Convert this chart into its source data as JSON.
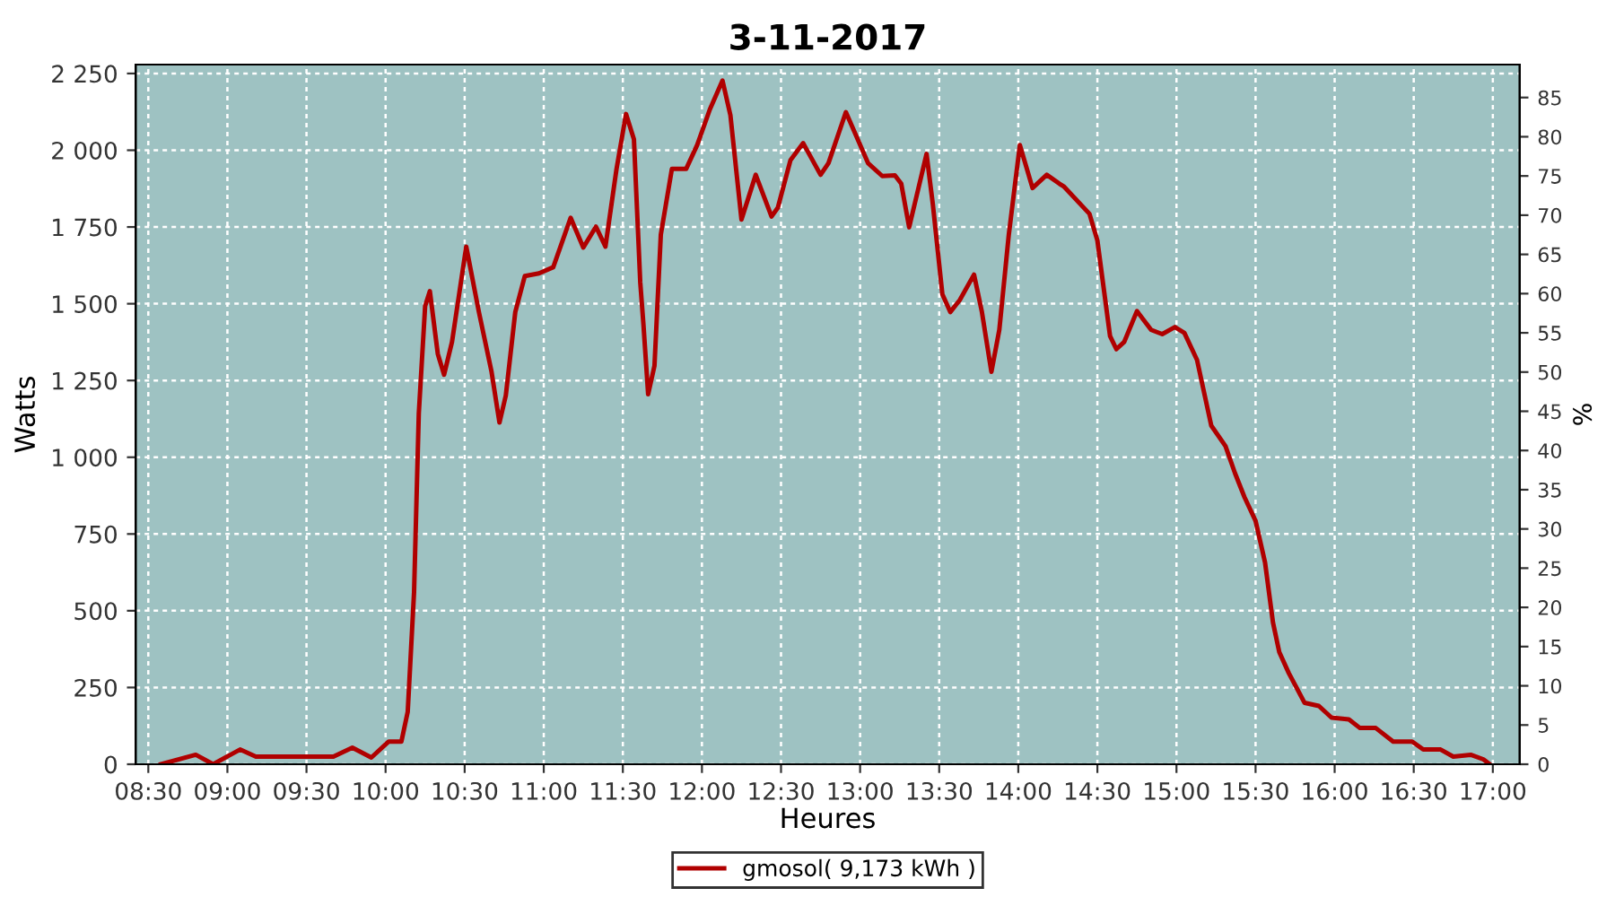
{
  "chart_data": {
    "type": "line",
    "title": "3-11-2017",
    "xlabel": "Heures",
    "ylabel": "Watts",
    "y2label": "%",
    "x": [
      8.58,
      8.8,
      8.91,
      9.08,
      9.18,
      9.67,
      9.79,
      9.91,
      10.02,
      10.1,
      10.14,
      10.18,
      10.21,
      10.25,
      10.28,
      10.33,
      10.37,
      10.42,
      10.51,
      10.59,
      10.67,
      10.72,
      10.76,
      10.82,
      10.88,
      10.97,
      11.06,
      11.17,
      11.25,
      11.33,
      11.39,
      11.46,
      11.52,
      11.57,
      11.61,
      11.63,
      11.66,
      11.7,
      11.74,
      11.81,
      11.9,
      11.97,
      12.05,
      12.13,
      12.18,
      12.25,
      12.34,
      12.44,
      12.48,
      12.56,
      12.64,
      12.75,
      12.8,
      12.91,
      13.05,
      13.14,
      13.22,
      13.26,
      13.31,
      13.42,
      13.46,
      13.52,
      13.57,
      13.63,
      13.72,
      13.77,
      13.83,
      13.88,
      13.94,
      14.01,
      14.09,
      14.18,
      14.26,
      14.29,
      14.45,
      14.5,
      14.58,
      14.62,
      14.67,
      14.75,
      14.84,
      14.91,
      14.99,
      15.05,
      15.13,
      15.22,
      15.31,
      15.37,
      15.43,
      15.5,
      15.56,
      15.61,
      15.65,
      15.71,
      15.81,
      15.9,
      15.98,
      16.09,
      16.16,
      16.26,
      16.37,
      16.49,
      16.56,
      16.67,
      16.75,
      16.86,
      16.94,
      16.98
    ],
    "series": [
      {
        "name": "gmosol( 9,173 kWh )",
        "color": "#b00000",
        "values": [
          0,
          31,
          0,
          48,
          25,
          25,
          54,
          22,
          74,
          74,
          171,
          560,
          1142,
          1492,
          1541,
          1337,
          1269,
          1376,
          1686,
          1473,
          1278,
          1113,
          1201,
          1473,
          1590,
          1599,
          1619,
          1780,
          1683,
          1751,
          1686,
          1939,
          2118,
          2036,
          1570,
          1434,
          1205,
          1298,
          1725,
          1939,
          1939,
          2017,
          2133,
          2227,
          2114,
          1774,
          1920,
          1784,
          1813,
          1968,
          2023,
          1920,
          1958,
          2124,
          1958,
          1916,
          1918,
          1891,
          1749,
          1988,
          1823,
          1531,
          1473,
          1512,
          1595,
          1473,
          1278,
          1415,
          1725,
          2017,
          1877,
          1920,
          1891,
          1881,
          1793,
          1706,
          1395,
          1352,
          1376,
          1476,
          1415,
          1401,
          1424,
          1405,
          1317,
          1103,
          1036,
          948,
          870,
          793,
          657,
          462,
          365,
          297,
          200,
          190,
          152,
          146,
          118,
          118,
          74,
          74,
          48,
          48,
          25,
          31,
          16,
          0
        ]
      }
    ],
    "xlim": [
      8.42,
      17.17
    ],
    "ylim": [
      0,
      2279
    ],
    "y2lim": [
      0,
      89.2
    ],
    "xticks": [
      {
        "value": 8.5,
        "label": "08:30"
      },
      {
        "value": 9,
        "label": "09:00"
      },
      {
        "value": 9.5,
        "label": "09:30"
      },
      {
        "value": 10,
        "label": "10:00"
      },
      {
        "value": 10.5,
        "label": "10:30"
      },
      {
        "value": 11,
        "label": "11:00"
      },
      {
        "value": 11.5,
        "label": "11:30"
      },
      {
        "value": 12,
        "label": "12:00"
      },
      {
        "value": 12.5,
        "label": "12:30"
      },
      {
        "value": 13,
        "label": "13:00"
      },
      {
        "value": 13.5,
        "label": "13:30"
      },
      {
        "value": 14,
        "label": "14:00"
      },
      {
        "value": 14.5,
        "label": "14:30"
      },
      {
        "value": 15,
        "label": "15:00"
      },
      {
        "value": 15.5,
        "label": "15:30"
      },
      {
        "value": 16,
        "label": "16:00"
      },
      {
        "value": 16.5,
        "label": "16:30"
      },
      {
        "value": 17,
        "label": "17:00"
      }
    ],
    "yticks": [
      0,
      250,
      500,
      750,
      {
        "value": 1000,
        "label": "1 000"
      },
      {
        "value": 1250,
        "label": "1 250"
      },
      {
        "value": 1500,
        "label": "1 500"
      },
      {
        "value": 1750,
        "label": "1 750"
      },
      {
        "value": 2000,
        "label": "2 000"
      },
      {
        "value": 2250,
        "label": "2 250"
      }
    ],
    "y2ticks": [
      0,
      5,
      10,
      15,
      20,
      25,
      30,
      35,
      40,
      45,
      50,
      55,
      60,
      65,
      70,
      75,
      80,
      85
    ],
    "grid": true,
    "legend": "bottom",
    "marker": "none",
    "line_style": "solid"
  }
}
